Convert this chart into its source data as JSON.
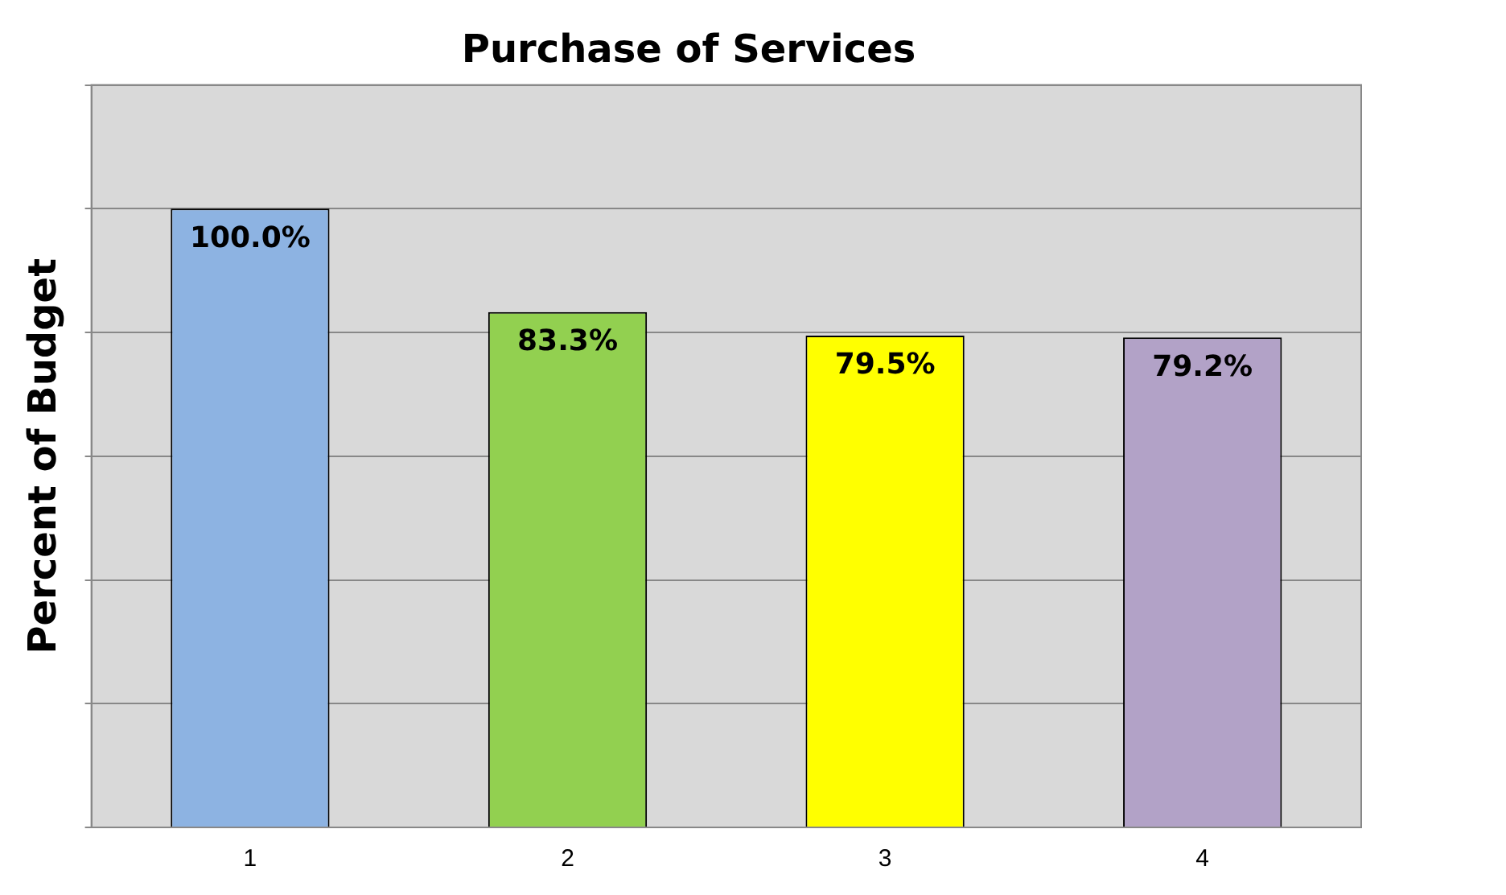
{
  "chart_data": {
    "type": "bar",
    "title": "Purchase of Services",
    "ylabel": "Percent of Budget",
    "categories": [
      "1",
      "2",
      "3",
      "4"
    ],
    "values": [
      100,
      83.3,
      79.5,
      79.2
    ],
    "colors": [
      "#8db3e2",
      "#92d050",
      "#ffff00",
      "#b2a2c7"
    ],
    "value_labels": [
      "100.0%",
      "83.3%",
      "79.5%",
      "79.2%"
    ],
    "ylim": [
      0,
      120
    ],
    "yticks": [
      {
        "value": 0,
        "label": null
      },
      {
        "value": 20,
        "label": null
      },
      {
        "value": 40,
        "label": null
      },
      {
        "value": 60,
        "label": null
      },
      {
        "value": 80,
        "label": null
      },
      {
        "value": 100,
        "label": null
      },
      {
        "value": 120,
        "label": null
      }
    ],
    "grid": "y",
    "legend": false,
    "tick_labels": "x"
  }
}
